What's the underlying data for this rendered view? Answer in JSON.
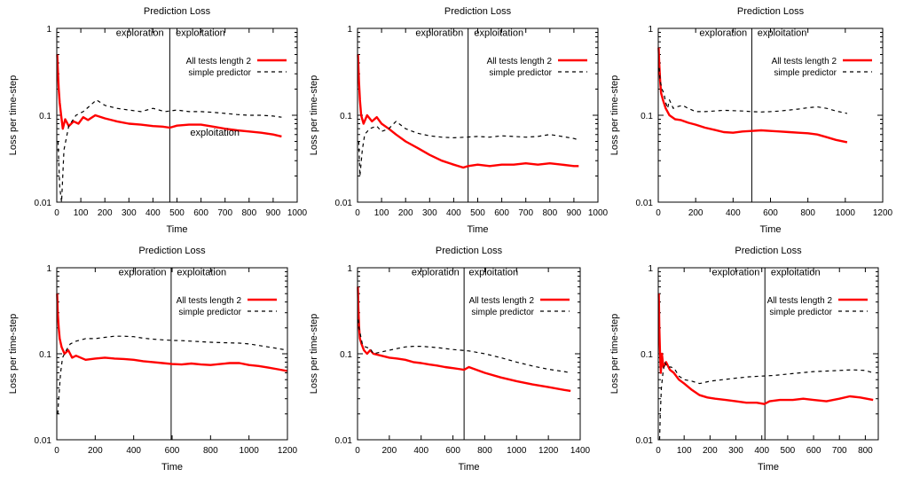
{
  "chart_data": [
    {
      "type": "line",
      "title": "Prediction Loss",
      "xlabel": "Time",
      "ylabel": "Loss per time-step",
      "xlim": [
        0,
        1000
      ],
      "ylim": [
        0.01,
        1
      ],
      "y_scale": "log",
      "x_ticks": [
        0,
        100,
        200,
        300,
        400,
        500,
        600,
        700,
        800,
        900,
        1000
      ],
      "y_ticks": [
        0.01,
        0.1,
        1
      ],
      "grid": false,
      "legend_position": "top-right",
      "vline": 470,
      "annotations": [
        {
          "text": "exploration",
          "x": 445,
          "y": 0.82,
          "anchor": "end"
        },
        {
          "text": "exploitation",
          "x": 495,
          "y": 0.82,
          "anchor": "start"
        },
        {
          "text": "exploitation",
          "x": 555,
          "y": 0.058,
          "anchor": "start"
        }
      ],
      "series": [
        {
          "name": "All tests length 2",
          "color": "#ff0000",
          "dash": "solid",
          "x": [
            2,
            5,
            8,
            12,
            18,
            25,
            35,
            50,
            70,
            90,
            110,
            130,
            160,
            200,
            250,
            300,
            350,
            400,
            440,
            470,
            500,
            550,
            600,
            650,
            700,
            750,
            800,
            850,
            900,
            935
          ],
          "y": [
            0.5,
            0.3,
            0.2,
            0.14,
            0.1,
            0.07,
            0.09,
            0.075,
            0.085,
            0.08,
            0.095,
            0.088,
            0.1,
            0.092,
            0.085,
            0.08,
            0.078,
            0.075,
            0.074,
            0.072,
            0.076,
            0.078,
            0.078,
            0.074,
            0.07,
            0.067,
            0.065,
            0.063,
            0.06,
            0.057
          ]
        },
        {
          "name": "simple predictor",
          "color": "#000000",
          "dash": "dashed",
          "x": [
            5,
            12,
            20,
            30,
            50,
            80,
            110,
            140,
            165,
            200,
            250,
            300,
            350,
            400,
            450,
            500,
            550,
            600,
            650,
            700,
            750,
            800,
            850,
            900,
            935
          ],
          "y": [
            0.05,
            0.015,
            0.01,
            0.04,
            0.075,
            0.1,
            0.11,
            0.13,
            0.15,
            0.13,
            0.12,
            0.115,
            0.11,
            0.12,
            0.11,
            0.115,
            0.11,
            0.11,
            0.108,
            0.105,
            0.102,
            0.1,
            0.1,
            0.098,
            0.095
          ]
        }
      ]
    },
    {
      "type": "line",
      "title": "Prediction Loss",
      "xlabel": "Time",
      "ylabel": "Loss per time-step",
      "xlim": [
        0,
        1000
      ],
      "ylim": [
        0.01,
        1
      ],
      "y_scale": "log",
      "x_ticks": [
        0,
        100,
        200,
        300,
        400,
        500,
        600,
        700,
        800,
        900,
        1000
      ],
      "y_ticks": [
        0.01,
        0.1,
        1
      ],
      "grid": false,
      "legend_position": "top-right",
      "vline": 460,
      "annotations": [
        {
          "text": "exploration",
          "x": 440,
          "y": 0.82,
          "anchor": "end"
        },
        {
          "text": "exploitation",
          "x": 485,
          "y": 0.82,
          "anchor": "start"
        }
      ],
      "series": [
        {
          "name": "All tests length 2",
          "color": "#ff0000",
          "dash": "solid",
          "x": [
            2,
            6,
            10,
            15,
            25,
            40,
            60,
            80,
            100,
            130,
            160,
            200,
            250,
            300,
            350,
            400,
            440,
            460,
            500,
            550,
            600,
            650,
            700,
            750,
            800,
            850,
            900,
            920
          ],
          "y": [
            0.5,
            0.25,
            0.15,
            0.1,
            0.08,
            0.1,
            0.085,
            0.095,
            0.08,
            0.07,
            0.06,
            0.05,
            0.042,
            0.035,
            0.03,
            0.027,
            0.025,
            0.026,
            0.027,
            0.026,
            0.027,
            0.027,
            0.028,
            0.027,
            0.028,
            0.027,
            0.026,
            0.026
          ]
        },
        {
          "name": "simple predictor",
          "color": "#000000",
          "dash": "dashed",
          "x": [
            5,
            10,
            20,
            30,
            50,
            80,
            100,
            130,
            160,
            200,
            250,
            300,
            350,
            400,
            450,
            500,
            550,
            600,
            650,
            700,
            750,
            800,
            850,
            900,
            920
          ],
          "y": [
            0.05,
            0.02,
            0.04,
            0.06,
            0.07,
            0.075,
            0.065,
            0.07,
            0.085,
            0.07,
            0.062,
            0.058,
            0.056,
            0.055,
            0.056,
            0.057,
            0.056,
            0.058,
            0.057,
            0.056,
            0.057,
            0.06,
            0.057,
            0.054,
            0.052
          ]
        }
      ]
    },
    {
      "type": "line",
      "title": "Prediction Loss",
      "xlabel": "Time",
      "ylabel": "Loss per time-step",
      "xlim": [
        0,
        1200
      ],
      "ylim": [
        0.01,
        1
      ],
      "y_scale": "log",
      "x_ticks": [
        0,
        200,
        400,
        600,
        800,
        1000,
        1200
      ],
      "y_ticks": [
        0.01,
        0.1,
        1
      ],
      "grid": false,
      "legend_position": "top-right",
      "vline": 500,
      "annotations": [
        {
          "text": "exploration",
          "x": 475,
          "y": 0.82,
          "anchor": "end"
        },
        {
          "text": "exploitation",
          "x": 530,
          "y": 0.82,
          "anchor": "start"
        }
      ],
      "series": [
        {
          "name": "All tests length 2",
          "color": "#ff0000",
          "dash": "solid",
          "x": [
            2,
            5,
            10,
            15,
            25,
            40,
            60,
            90,
            120,
            160,
            200,
            250,
            300,
            350,
            400,
            450,
            500,
            550,
            600,
            650,
            700,
            750,
            800,
            850,
            900,
            950,
            1010
          ],
          "y": [
            0.6,
            0.4,
            0.25,
            0.18,
            0.15,
            0.12,
            0.1,
            0.09,
            0.088,
            0.082,
            0.078,
            0.072,
            0.068,
            0.064,
            0.063,
            0.065,
            0.066,
            0.067,
            0.066,
            0.065,
            0.064,
            0.063,
            0.062,
            0.06,
            0.056,
            0.052,
            0.049
          ]
        },
        {
          "name": "simple predictor",
          "color": "#000000",
          "dash": "dashed",
          "x": [
            5,
            10,
            20,
            30,
            40,
            50,
            60,
            80,
            100,
            130,
            160,
            200,
            250,
            300,
            350,
            400,
            450,
            500,
            550,
            600,
            650,
            700,
            750,
            800,
            850,
            900,
            950,
            1010
          ],
          "y": [
            0.35,
            0.25,
            0.2,
            0.18,
            0.14,
            0.12,
            0.15,
            0.12,
            0.125,
            0.13,
            0.12,
            0.11,
            0.11,
            0.112,
            0.114,
            0.113,
            0.112,
            0.11,
            0.109,
            0.11,
            0.112,
            0.115,
            0.118,
            0.122,
            0.125,
            0.12,
            0.112,
            0.105
          ]
        }
      ]
    },
    {
      "type": "line",
      "title": "Prediction Loss",
      "xlabel": "Time",
      "ylabel": "Loss per time-step",
      "xlim": [
        0,
        1200
      ],
      "ylim": [
        0.01,
        1
      ],
      "y_scale": "log",
      "x_ticks": [
        0,
        200,
        400,
        600,
        800,
        1000,
        1200
      ],
      "y_ticks": [
        0.01,
        0.1,
        1
      ],
      "grid": false,
      "legend_position": "top-right",
      "vline": 595,
      "annotations": [
        {
          "text": "exploration",
          "x": 570,
          "y": 0.82,
          "anchor": "end"
        },
        {
          "text": "exploitation",
          "x": 625,
          "y": 0.82,
          "anchor": "start"
        }
      ],
      "series": [
        {
          "name": "All tests length 2",
          "color": "#ff0000",
          "dash": "solid",
          "x": [
            2,
            5,
            10,
            15,
            25,
            40,
            60,
            80,
            100,
            150,
            200,
            250,
            300,
            350,
            400,
            450,
            500,
            550,
            600,
            650,
            700,
            750,
            800,
            850,
            900,
            950,
            1000,
            1050,
            1100,
            1150,
            1200
          ],
          "y": [
            0.5,
            0.3,
            0.2,
            0.15,
            0.12,
            0.1,
            0.11,
            0.09,
            0.095,
            0.085,
            0.088,
            0.09,
            0.088,
            0.087,
            0.085,
            0.082,
            0.08,
            0.078,
            0.076,
            0.075,
            0.077,
            0.075,
            0.074,
            0.076,
            0.078,
            0.078,
            0.074,
            0.072,
            0.069,
            0.066,
            0.063
          ]
        },
        {
          "name": "simple predictor",
          "color": "#000000",
          "dash": "dashed",
          "x": [
            5,
            10,
            20,
            30,
            50,
            70,
            100,
            150,
            200,
            250,
            300,
            350,
            400,
            450,
            500,
            550,
            600,
            650,
            700,
            750,
            800,
            850,
            900,
            950,
            1000,
            1050,
            1100,
            1150,
            1200
          ],
          "y": [
            0.02,
            0.03,
            0.06,
            0.09,
            0.11,
            0.13,
            0.14,
            0.15,
            0.15,
            0.155,
            0.16,
            0.16,
            0.158,
            0.152,
            0.148,
            0.145,
            0.143,
            0.142,
            0.14,
            0.138,
            0.136,
            0.135,
            0.134,
            0.133,
            0.13,
            0.125,
            0.12,
            0.115,
            0.11
          ]
        }
      ]
    },
    {
      "type": "line",
      "title": "Prediction Loss",
      "xlabel": "Time",
      "ylabel": "Loss per time-step",
      "xlim": [
        0,
        1400
      ],
      "ylim": [
        0.01,
        1
      ],
      "y_scale": "log",
      "x_ticks": [
        0,
        200,
        400,
        600,
        800,
        1000,
        1200,
        1400
      ],
      "y_ticks": [
        0.01,
        0.1,
        1
      ],
      "grid": false,
      "legend_position": "top-right",
      "vline": 670,
      "annotations": [
        {
          "text": "exploration",
          "x": 640,
          "y": 0.82,
          "anchor": "end"
        },
        {
          "text": "exploitation",
          "x": 700,
          "y": 0.82,
          "anchor": "start"
        }
      ],
      "series": [
        {
          "name": "All tests length 2",
          "color": "#ff0000",
          "dash": "solid",
          "x": [
            2,
            5,
            10,
            15,
            25,
            40,
            60,
            80,
            100,
            150,
            200,
            250,
            300,
            350,
            400,
            450,
            500,
            550,
            600,
            650,
            670,
            700,
            800,
            900,
            1000,
            1100,
            1200,
            1300,
            1340
          ],
          "y": [
            0.6,
            0.35,
            0.2,
            0.15,
            0.13,
            0.11,
            0.1,
            0.11,
            0.1,
            0.095,
            0.09,
            0.088,
            0.085,
            0.08,
            0.078,
            0.075,
            0.073,
            0.07,
            0.068,
            0.066,
            0.065,
            0.07,
            0.06,
            0.053,
            0.048,
            0.044,
            0.041,
            0.038,
            0.037
          ]
        },
        {
          "name": "simple predictor",
          "color": "#000000",
          "dash": "dashed",
          "x": [
            5,
            10,
            20,
            30,
            50,
            80,
            100,
            150,
            200,
            250,
            300,
            350,
            400,
            450,
            500,
            550,
            600,
            650,
            700,
            800,
            900,
            1000,
            1100,
            1200,
            1300,
            1340
          ],
          "y": [
            0.25,
            0.2,
            0.16,
            0.13,
            0.12,
            0.115,
            0.1,
            0.105,
            0.11,
            0.115,
            0.12,
            0.122,
            0.122,
            0.12,
            0.118,
            0.115,
            0.112,
            0.11,
            0.108,
            0.1,
            0.09,
            0.08,
            0.072,
            0.066,
            0.062,
            0.06
          ]
        }
      ]
    },
    {
      "type": "line",
      "title": "Prediction Loss",
      "xlabel": "Time",
      "ylabel": "Loss per time-step",
      "xlim": [
        0,
        850
      ],
      "ylim": [
        0.01,
        1
      ],
      "y_scale": "log",
      "x_ticks": [
        0,
        100,
        200,
        300,
        400,
        500,
        600,
        700,
        800
      ],
      "y_ticks": [
        0.01,
        0.1,
        1
      ],
      "grid": false,
      "legend_position": "top-right",
      "vline": 412,
      "annotations": [
        {
          "text": "exploration",
          "x": 392,
          "y": 0.82,
          "anchor": "end"
        },
        {
          "text": "exploitation",
          "x": 435,
          "y": 0.82,
          "anchor": "start"
        }
      ],
      "series": [
        {
          "name": "All tests length 2",
          "color": "#ff0000",
          "dash": "solid",
          "x": [
            2,
            4,
            7,
            10,
            14,
            20,
            30,
            45,
            60,
            80,
            100,
            130,
            160,
            190,
            220,
            260,
            300,
            340,
            380,
            410,
            430,
            470,
            520,
            560,
            600,
            650,
            700,
            740,
            780,
            830
          ],
          "y": [
            0.5,
            0.2,
            0.1,
            0.06,
            0.1,
            0.07,
            0.08,
            0.065,
            0.06,
            0.05,
            0.045,
            0.038,
            0.033,
            0.031,
            0.03,
            0.029,
            0.028,
            0.027,
            0.027,
            0.026,
            0.028,
            0.029,
            0.029,
            0.03,
            0.029,
            0.028,
            0.03,
            0.032,
            0.031,
            0.029
          ]
        },
        {
          "name": "simple predictor",
          "color": "#000000",
          "dash": "dashed",
          "x": [
            5,
            8,
            12,
            18,
            25,
            35,
            50,
            65,
            80,
            100,
            130,
            160,
            200,
            250,
            300,
            350,
            400,
            450,
            500,
            550,
            600,
            650,
            700,
            750,
            800,
            830
          ],
          "y": [
            0.01,
            0.02,
            0.04,
            0.06,
            0.08,
            0.07,
            0.07,
            0.065,
            0.055,
            0.05,
            0.048,
            0.045,
            0.048,
            0.05,
            0.052,
            0.054,
            0.055,
            0.056,
            0.058,
            0.06,
            0.062,
            0.063,
            0.064,
            0.065,
            0.064,
            0.06
          ]
        }
      ]
    }
  ]
}
